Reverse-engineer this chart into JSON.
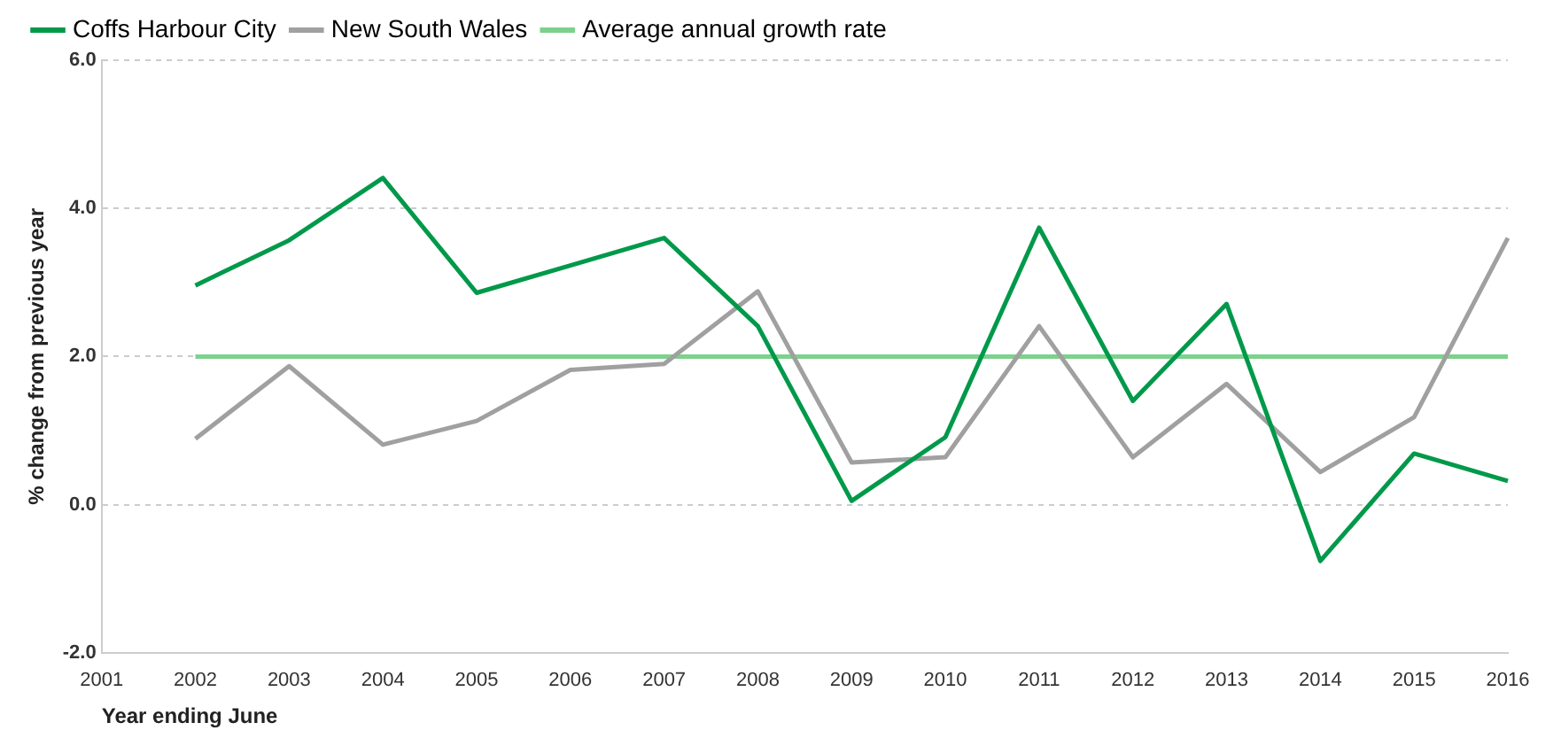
{
  "chart_data": {
    "type": "line",
    "xlabel": "Year ending June",
    "ylabel": "% change from previous year",
    "categories": [
      "2001",
      "2002",
      "2003",
      "2004",
      "2005",
      "2006",
      "2007",
      "2008",
      "2009",
      "2010",
      "2011",
      "2012",
      "2013",
      "2014",
      "2015",
      "2016"
    ],
    "series": [
      {
        "name": "Coffs Harbour City",
        "color": "#00994a",
        "values": [
          null,
          2.96,
          3.57,
          4.41,
          2.86,
          3.23,
          3.6,
          2.41,
          0.05,
          0.91,
          3.74,
          1.4,
          2.71,
          -0.76,
          0.69,
          0.32
        ]
      },
      {
        "name": "New South Wales",
        "color": "#a0a0a0",
        "values": [
          null,
          0.89,
          1.87,
          0.81,
          1.13,
          1.82,
          1.9,
          2.88,
          0.57,
          0.64,
          2.41,
          0.64,
          1.63,
          0.44,
          1.18,
          3.6
        ]
      },
      {
        "name": "Average annual growth rate",
        "color": "#7dd18c",
        "values": [
          null,
          2.0,
          2.0,
          2.0,
          2.0,
          2.0,
          2.0,
          2.0,
          2.0,
          2.0,
          2.0,
          2.0,
          2.0,
          2.0,
          2.0,
          2.0
        ]
      }
    ],
    "ylim": [
      -2,
      6
    ],
    "yticks": [
      {
        "value": -2,
        "label": "-2.0"
      },
      {
        "value": 0,
        "label": "0.0"
      },
      {
        "value": 2,
        "label": "2.0"
      },
      {
        "value": 4,
        "label": "4.0"
      },
      {
        "value": 6,
        "label": "6.0"
      }
    ],
    "grid": "y",
    "legend": "top left",
    "marker": "none",
    "line_style": "solid"
  }
}
